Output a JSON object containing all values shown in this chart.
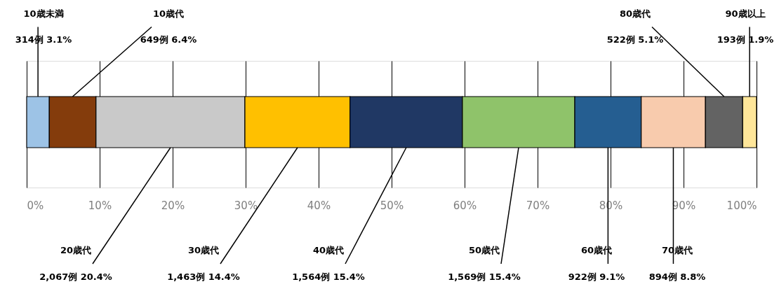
{
  "chart_data": {
    "type": "bar",
    "orientation": "horizontal",
    "stacked": true,
    "categories": [
      null
    ],
    "xlim": [
      0,
      100
    ],
    "xticks": [
      {
        "value": 0,
        "label": "0%"
      },
      {
        "value": 10,
        "label": "10%"
      },
      {
        "value": 20,
        "label": "20%"
      },
      {
        "value": 30,
        "label": "30%"
      },
      {
        "value": 40,
        "label": "40%"
      },
      {
        "value": 50,
        "label": "50%"
      },
      {
        "value": 60,
        "label": "60%"
      },
      {
        "value": 70,
        "label": "70%"
      },
      {
        "value": 80,
        "label": "80%"
      },
      {
        "value": 90,
        "label": "90%"
      },
      {
        "value": 100,
        "label": "100%"
      }
    ],
    "grid": "x",
    "legend": false,
    "series": [
      {
        "name": "10歳未満",
        "color": "#9dc3e6",
        "values": [
          3.1
        ],
        "value_labels": [
          "314例 3.1%"
        ]
      },
      {
        "name": "10歳代",
        "color": "#843c0c",
        "values": [
          6.4
        ],
        "value_labels": [
          "649例 6.4%"
        ]
      },
      {
        "name": "20歳代",
        "color": "#c9c9c9",
        "values": [
          20.4
        ],
        "value_labels": [
          "2,067例 20.4%"
        ]
      },
      {
        "name": "30歳代",
        "color": "#ffc000",
        "values": [
          14.4
        ],
        "value_labels": [
          "1,463例 14.4%"
        ]
      },
      {
        "name": "40歳代",
        "color": "#203864",
        "values": [
          15.4
        ],
        "value_labels": [
          "1,564例 15.4%"
        ]
      },
      {
        "name": "50歳代",
        "color": "#8fc36a",
        "values": [
          15.4
        ],
        "value_labels": [
          "1,569例 15.4%"
        ]
      },
      {
        "name": "60歳代",
        "color": "#255e91",
        "values": [
          9.1
        ],
        "value_labels": [
          "922例 9.1%"
        ]
      },
      {
        "name": "70歳代",
        "color": "#f8cbad",
        "values": [
          8.8
        ],
        "value_labels": [
          "894例 8.8%"
        ]
      },
      {
        "name": "80歳代",
        "color": "#636363",
        "values": [
          5.1
        ],
        "value_labels": [
          "522例 5.1%"
        ]
      },
      {
        "name": "90歳以上",
        "color": "#ffe699",
        "values": [
          1.9
        ],
        "value_labels": [
          "193例 1.9%"
        ]
      }
    ]
  }
}
